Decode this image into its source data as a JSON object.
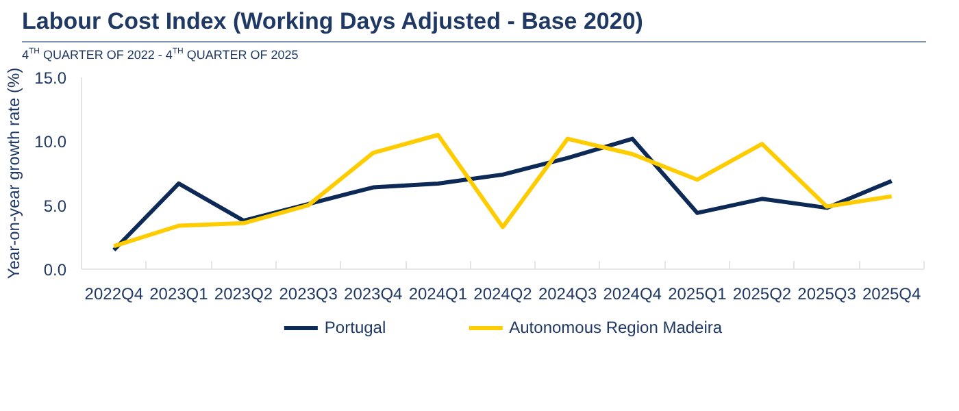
{
  "chart_data": {
    "type": "line",
    "title": "Labour Cost Index (Working Days Adjusted - Base 2020)",
    "subtitle": "4$^{TH}$ QUARTER OF 2022 - 4$^{TH}$ QUARTER OF 2025",
    "ylabel": "Year-on-year growth rate (%)",
    "categories": [
      "2022Q4",
      "2023Q1",
      "2023Q2",
      "2023Q3",
      "2023Q4",
      "2024Q1",
      "2024Q2",
      "2024Q3",
      "2024Q4",
      "2025Q1",
      "2025Q2",
      "2025Q3",
      "2025Q4"
    ],
    "series": [
      {
        "name": "Portugal",
        "color": "#0d2a56",
        "values": [
          1.5,
          6.7,
          3.8,
          5.1,
          6.4,
          6.7,
          7.4,
          8.7,
          10.2,
          4.4,
          5.5,
          4.8,
          6.9
        ]
      },
      {
        "name": "Autonomous Region Madeira",
        "color": "#ffcc00",
        "values": [
          1.8,
          3.4,
          3.6,
          5.0,
          9.1,
          10.5,
          3.3,
          10.2,
          9.0,
          7.0,
          9.8,
          4.9,
          5.7
        ]
      }
    ],
    "ylim": [
      0,
      15
    ],
    "yticks": [
      {
        "value": 0,
        "label": "0.0"
      },
      {
        "value": 5,
        "label": "5.0"
      },
      {
        "value": 10,
        "label": "10.0"
      },
      {
        "value": 15,
        "label": "15.0"
      }
    ],
    "grid": false,
    "legend": "bottom",
    "line_style": "solid",
    "marker": "none"
  }
}
